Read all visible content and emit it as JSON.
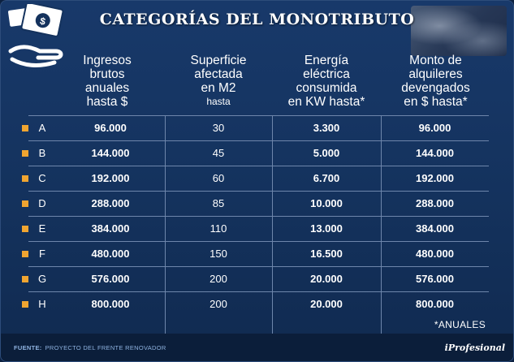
{
  "title": "CATEGORÍAS DEL MONOTRIBUTO",
  "headers": {
    "ingresos": [
      "Ingresos",
      "brutos",
      "anuales",
      "hasta $"
    ],
    "superficie": [
      "Superficie",
      "afectada",
      "en M2",
      "hasta"
    ],
    "energia": [
      "Energía",
      "eléctrica",
      "consumida",
      "en KW hasta*"
    ],
    "alquileres": [
      "Monto de",
      "alquileres",
      "devengados",
      "en $ hasta*"
    ]
  },
  "rows": [
    {
      "cat": "A",
      "ingresos": "96.000",
      "superficie": "30",
      "energia": "3.300",
      "alquileres": "96.000"
    },
    {
      "cat": "B",
      "ingresos": "144.000",
      "superficie": "45",
      "energia": "5.000",
      "alquileres": "144.000"
    },
    {
      "cat": "C",
      "ingresos": "192.000",
      "superficie": "60",
      "energia": "6.700",
      "alquileres": "192.000"
    },
    {
      "cat": "D",
      "ingresos": "288.000",
      "superficie": "85",
      "energia": "10.000",
      "alquileres": "288.000"
    },
    {
      "cat": "E",
      "ingresos": "384.000",
      "superficie": "110",
      "energia": "13.000",
      "alquileres": "384.000"
    },
    {
      "cat": "F",
      "ingresos": "480.000",
      "superficie": "150",
      "energia": "16.500",
      "alquileres": "480.000"
    },
    {
      "cat": "G",
      "ingresos": "576.000",
      "superficie": "200",
      "energia": "20.000",
      "alquileres": "576.000"
    },
    {
      "cat": "H",
      "ingresos": "800.000",
      "superficie": "200",
      "energia": "20.000",
      "alquileres": "800.000"
    }
  ],
  "footnote": "*ANUALES",
  "source_label": "FUENTE:",
  "source_text": "PROYECTO DEL FRENTE RENOVADOR",
  "brand": "iProfesional",
  "colors": {
    "background": "#14325d",
    "bullet": "#f0a531",
    "grid": "#6e86ab",
    "text": "#ffffff"
  },
  "icons": [
    "hand-money-icon"
  ]
}
